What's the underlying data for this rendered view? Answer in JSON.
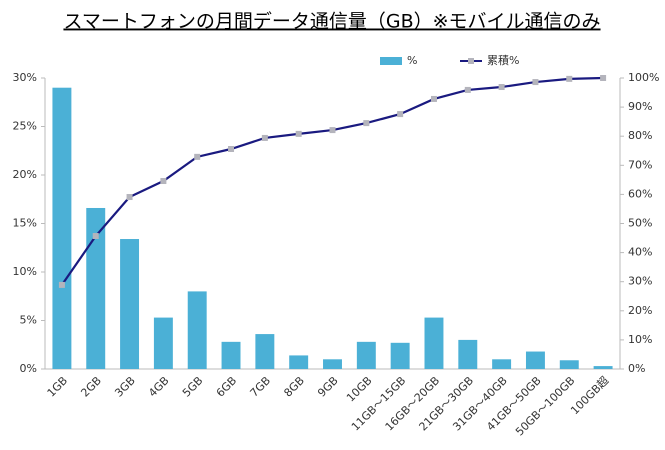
{
  "chart_data": {
    "type": "bar",
    "title": "スマートフォンの月間データ通信量（GB）※モバイル通信のみ",
    "categories": [
      "1GB",
      "2GB",
      "3GB",
      "4GB",
      "5GB",
      "6GB",
      "7GB",
      "8GB",
      "9GB",
      "10GB",
      "11GB～15GB",
      "16GB～20GB",
      "21GB～30GB",
      "31GB～40GB",
      "41GB～50GB",
      "50GB～100GB",
      "100GB超"
    ],
    "series": [
      {
        "name": "%",
        "type": "bar",
        "color": "#4bb0d6",
        "values": [
          29.0,
          16.6,
          13.4,
          5.3,
          8.0,
          2.8,
          3.6,
          1.4,
          1.0,
          2.8,
          2.7,
          5.3,
          3.0,
          1.0,
          1.8,
          0.9,
          0.3
        ]
      },
      {
        "name": "累積%",
        "type": "line",
        "axis": "y2",
        "color": "#1a1a80",
        "marker_color": "#b4b4bc",
        "values": [
          28.9,
          45.7,
          59.1,
          64.6,
          72.9,
          75.6,
          79.4,
          80.8,
          82.1,
          84.5,
          87.6,
          92.8,
          95.9,
          96.9,
          98.6,
          99.7,
          100
        ]
      }
    ],
    "ylim": [
      0,
      30
    ],
    "yticks": [
      {
        "value": 0,
        "label": "0%"
      },
      {
        "value": 5,
        "label": "5%"
      },
      {
        "value": 10,
        "label": "10%"
      },
      {
        "value": 15,
        "label": "15%"
      },
      {
        "value": 20,
        "label": "20%"
      },
      {
        "value": 25,
        "label": "25%"
      },
      {
        "value": 30,
        "label": "30%"
      }
    ],
    "y2lim": [
      0,
      100
    ],
    "y2ticks": [
      {
        "value": 0,
        "label": "0%"
      },
      {
        "value": 10,
        "label": "10%"
      },
      {
        "value": 20,
        "label": "20%"
      },
      {
        "value": 30,
        "label": "30%"
      },
      {
        "value": 40,
        "label": "40%"
      },
      {
        "value": 50,
        "label": "50%"
      },
      {
        "value": 60,
        "label": "60%"
      },
      {
        "value": 70,
        "label": "70%"
      },
      {
        "value": 80,
        "label": "80%"
      },
      {
        "value": 90,
        "label": "90%"
      },
      {
        "value": 100,
        "label": "100%"
      }
    ],
    "grid": false
  }
}
